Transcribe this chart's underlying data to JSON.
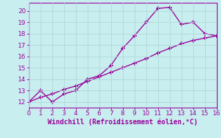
{
  "line1_x": [
    0,
    1,
    2,
    3,
    4,
    5,
    6,
    7,
    8,
    9,
    10,
    11,
    12,
    13,
    14,
    15,
    16
  ],
  "line1_y": [
    12,
    13,
    12,
    12.7,
    13,
    14,
    14.3,
    15.2,
    16.7,
    17.8,
    19,
    20.2,
    20.3,
    18.8,
    19,
    18,
    17.8
  ],
  "line2_x": [
    0,
    1,
    2,
    3,
    4,
    5,
    6,
    7,
    8,
    9,
    10,
    11,
    12,
    13,
    14,
    15,
    16
  ],
  "line2_y": [
    12,
    12.4,
    12.7,
    13.1,
    13.4,
    13.8,
    14.2,
    14.6,
    15.0,
    15.4,
    15.8,
    16.3,
    16.7,
    17.1,
    17.4,
    17.6,
    17.8
  ],
  "color": "#990099",
  "bg_color": "#c8eef0",
  "grid_color": "#b0d8d8",
  "xlabel": "Windchill (Refroidissement éolien,°C)",
  "xlim": [
    0,
    16
  ],
  "ylim": [
    11.5,
    20.7
  ],
  "xticks": [
    0,
    1,
    2,
    3,
    4,
    5,
    6,
    7,
    8,
    9,
    10,
    11,
    12,
    13,
    14,
    15,
    16
  ],
  "yticks": [
    12,
    13,
    14,
    15,
    16,
    17,
    18,
    19,
    20
  ],
  "marker": "+",
  "markersize": 5,
  "linewidth": 1.0,
  "xlabel_fontsize": 7,
  "tick_fontsize": 6.5
}
